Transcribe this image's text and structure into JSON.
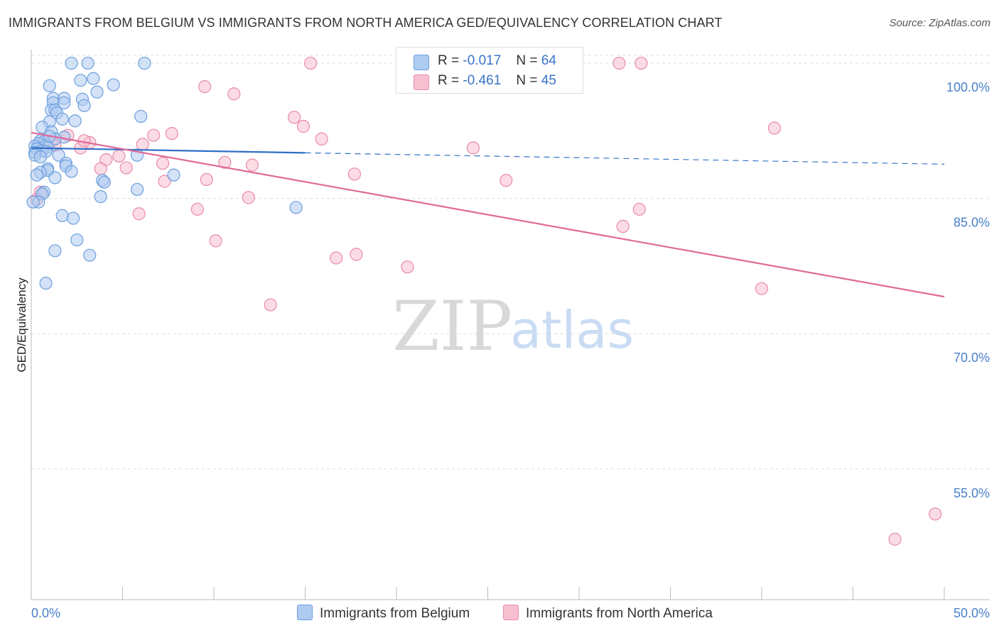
{
  "header": {
    "title": "IMMIGRANTS FROM BELGIUM VS IMMIGRANTS FROM NORTH AMERICA GED/EQUIVALENCY CORRELATION CHART",
    "source": "Source: ZipAtlas.com"
  },
  "watermark": {
    "zip": "ZIP",
    "atlas": "atlas"
  },
  "stats": {
    "belgium": {
      "r_label": "R =",
      "r_value": "-0.017",
      "n_label": "N =",
      "n_value": "64"
    },
    "north_america": {
      "r_label": "R =",
      "r_value": "-0.461",
      "n_label": "N =",
      "n_value": "45"
    }
  },
  "legend": {
    "belgium": "Immigrants from Belgium",
    "north_america": "Immigrants from North America"
  },
  "colors": {
    "belgium_fill": "#aecbf0",
    "belgium_stroke": "#6d9fde",
    "belgium_line": "#2f6fc8",
    "na_fill": "#f7c0d0",
    "na_stroke": "#e98aa8",
    "na_line": "#e0699a",
    "tick_text": "#4a7fc9",
    "grid": "#dddddd"
  },
  "chart_data": {
    "type": "scatter",
    "title": "IMMIGRANTS FROM BELGIUM VS IMMIGRANTS FROM NORTH AMERICA GED/EQUIVALENCY CORRELATION CHART",
    "xlabel": "",
    "ylabel": "GED/Equivalency",
    "xlim": [
      0,
      50
    ],
    "ylim": [
      40.5,
      101.5
    ],
    "x_tick_labels": [
      "0.0%",
      "50.0%"
    ],
    "y_ticks": [
      55,
      70,
      85,
      100
    ],
    "y_tick_labels": [
      "55.0%",
      "70.0%",
      "85.0%",
      "100.0%"
    ],
    "grid": true,
    "legend_position": "bottom-center",
    "series": [
      {
        "name": "Immigrants from Belgium",
        "r": -0.017,
        "n": 64,
        "trend": {
          "solid_x": [
            0,
            15
          ],
          "dashed_x": [
            15,
            50
          ],
          "y_at_0": 90.6,
          "y_at_50": 88.8
        },
        "points": [
          [
            2.2,
            100.0
          ],
          [
            3.1,
            100.0
          ],
          [
            6.2,
            100.0
          ],
          [
            3.4,
            98.3
          ],
          [
            2.7,
            98.1
          ],
          [
            1.0,
            97.5
          ],
          [
            4.5,
            97.6
          ],
          [
            3.6,
            96.8
          ],
          [
            1.2,
            96.1
          ],
          [
            1.8,
            96.1
          ],
          [
            2.8,
            96.0
          ],
          [
            1.2,
            95.6
          ],
          [
            1.8,
            95.6
          ],
          [
            2.9,
            95.3
          ],
          [
            1.1,
            94.8
          ],
          [
            1.3,
            94.8
          ],
          [
            1.4,
            94.5
          ],
          [
            6.0,
            94.1
          ],
          [
            1.7,
            93.8
          ],
          [
            2.4,
            93.6
          ],
          [
            1.0,
            93.5
          ],
          [
            0.6,
            92.9
          ],
          [
            1.1,
            92.4
          ],
          [
            1.8,
            91.8
          ],
          [
            1.3,
            91.6
          ],
          [
            0.5,
            91.4
          ],
          [
            0.7,
            91.3
          ],
          [
            0.4,
            91.1
          ],
          [
            0.8,
            90.9
          ],
          [
            0.2,
            90.8
          ],
          [
            0.9,
            90.7
          ],
          [
            0.3,
            90.5
          ],
          [
            0.6,
            90.3
          ],
          [
            0.8,
            90.2
          ],
          [
            0.2,
            90.1
          ],
          [
            0.2,
            89.8
          ],
          [
            1.5,
            89.8
          ],
          [
            5.8,
            89.8
          ],
          [
            1.9,
            88.9
          ],
          [
            1.9,
            88.6
          ],
          [
            0.9,
            88.3
          ],
          [
            0.9,
            88.1
          ],
          [
            0.5,
            87.9
          ],
          [
            2.2,
            88.0
          ],
          [
            0.3,
            87.6
          ],
          [
            1.3,
            87.3
          ],
          [
            7.8,
            87.6
          ],
          [
            3.9,
            87.0
          ],
          [
            4.0,
            86.8
          ],
          [
            5.8,
            86.0
          ],
          [
            0.7,
            85.7
          ],
          [
            0.6,
            85.5
          ],
          [
            3.8,
            85.2
          ],
          [
            0.4,
            84.6
          ],
          [
            14.5,
            84.0
          ],
          [
            1.7,
            83.1
          ],
          [
            2.3,
            82.8
          ],
          [
            2.5,
            80.4
          ],
          [
            1.3,
            79.2
          ],
          [
            3.2,
            78.7
          ],
          [
            0.8,
            75.6
          ],
          [
            0.1,
            84.6
          ],
          [
            1.0,
            91.9
          ],
          [
            0.5,
            89.6
          ]
        ]
      },
      {
        "name": "Immigrants from North America",
        "r": -0.461,
        "n": 45,
        "trend": {
          "solid_x": [
            0,
            50
          ],
          "y_at_0": 92.3,
          "y_at_50": 74.1
        },
        "points": [
          [
            15.3,
            100.0
          ],
          [
            32.2,
            100.0
          ],
          [
            33.4,
            100.0
          ],
          [
            9.5,
            97.4
          ],
          [
            11.1,
            96.6
          ],
          [
            14.4,
            94.0
          ],
          [
            14.9,
            93.0
          ],
          [
            40.7,
            92.8
          ],
          [
            2.0,
            92.0
          ],
          [
            6.7,
            92.0
          ],
          [
            7.7,
            92.2
          ],
          [
            15.9,
            91.6
          ],
          [
            3.2,
            91.2
          ],
          [
            6.1,
            91.0
          ],
          [
            2.7,
            90.6
          ],
          [
            24.2,
            90.6
          ],
          [
            4.1,
            89.3
          ],
          [
            4.8,
            89.7
          ],
          [
            7.2,
            88.9
          ],
          [
            10.6,
            89.0
          ],
          [
            12.1,
            88.7
          ],
          [
            3.8,
            88.3
          ],
          [
            5.2,
            88.4
          ],
          [
            17.7,
            87.7
          ],
          [
            7.3,
            86.9
          ],
          [
            9.6,
            87.1
          ],
          [
            26.0,
            87.0
          ],
          [
            11.9,
            85.1
          ],
          [
            9.1,
            83.8
          ],
          [
            5.9,
            83.3
          ],
          [
            33.3,
            83.8
          ],
          [
            32.4,
            81.9
          ],
          [
            10.1,
            80.3
          ],
          [
            16.7,
            78.4
          ],
          [
            17.8,
            78.8
          ],
          [
            20.6,
            77.4
          ],
          [
            40.0,
            75.0
          ],
          [
            13.1,
            73.2
          ],
          [
            49.5,
            50.0
          ],
          [
            47.3,
            47.2
          ],
          [
            1.1,
            91.3
          ],
          [
            1.3,
            90.9
          ],
          [
            2.9,
            91.4
          ],
          [
            0.3,
            84.9
          ],
          [
            0.5,
            85.7
          ]
        ]
      }
    ]
  }
}
